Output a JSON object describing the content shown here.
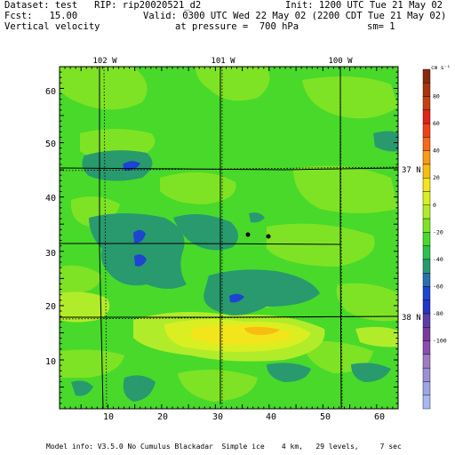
{
  "header": {
    "dataset": "Dataset: test   RIP: rip20020521_d2",
    "init": "Init: 1200 UTC Tue 21 May 02",
    "fcst": "Fcst:   15.00",
    "valid": "Valid: 0300 UTC Wed 22 May 02 (2200 CDT Tue 21 May 02)",
    "field": "Vertical velocity",
    "pressure": "at pressure =  700 hPa",
    "smoothing": "sm= 1"
  },
  "map": {
    "lon_labels": [
      "102 W",
      "101 W",
      "100 W"
    ],
    "lat_labels": [
      "37 N",
      "38 N"
    ],
    "y_ticks": [
      "60",
      "50",
      "40",
      "30",
      "20",
      "10"
    ],
    "x_ticks": [
      "10",
      "20",
      "30",
      "40",
      "50",
      "60"
    ],
    "x_range": [
      1,
      64
    ],
    "y_range": [
      1,
      64
    ],
    "station_markers": 2
  },
  "colorbar": {
    "unit": "cm s⁻¹",
    "labels": [
      "80",
      "60",
      "40",
      "20",
      "0",
      "-20",
      "-40",
      "-60",
      "-80",
      "-100"
    ],
    "colors": [
      "#8a2a0e",
      "#a8350f",
      "#c4410f",
      "#e2201a",
      "#f0401a",
      "#f56a18",
      "#f89a14",
      "#f7bd10",
      "#f3e51b",
      "#d9ef21",
      "#b1ec2a",
      "#7ee324",
      "#48d92b",
      "#2bc24c",
      "#289a6e",
      "#2a6fb0",
      "#1e44d1",
      "#2434c3",
      "#5a3da8",
      "#7b3b9b",
      "#8a4db0",
      "#a07cc2",
      "#9c8fd3",
      "#9ea4e6",
      "#a8b8f0"
    ]
  },
  "footer": {
    "model_info": "Model info: V3.5.0 No Cumulus Blackadar  Simple ice    4 km,   29 levels,     7 sec"
  }
}
